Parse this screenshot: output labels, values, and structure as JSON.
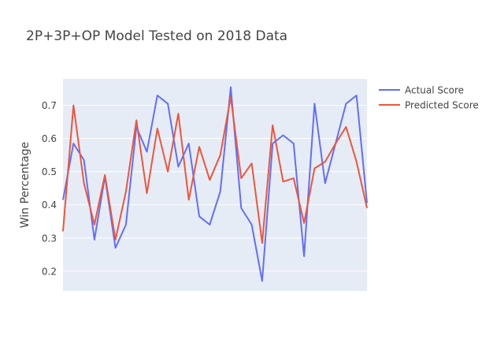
{
  "chart_data": {
    "type": "line",
    "title": "2P+3P+OP Model Tested on 2018 Data",
    "xlabel": "",
    "ylabel": "Win Percentage",
    "x": [
      0,
      1,
      2,
      3,
      4,
      5,
      6,
      7,
      8,
      9,
      10,
      11,
      12,
      13,
      14,
      15,
      16,
      17,
      18,
      19,
      20,
      21,
      22,
      23,
      24,
      25,
      26,
      27,
      28,
      29
    ],
    "ylim": [
      0.14,
      0.78
    ],
    "yticks": [
      0.2,
      0.3,
      0.4,
      0.5,
      0.6,
      0.7
    ],
    "ytick_labels": [
      "0.2",
      "0.3",
      "0.4",
      "0.5",
      "0.6",
      "0.7"
    ],
    "grid": true,
    "legend_position": "top-right",
    "series": [
      {
        "name": "Actual Score",
        "color": "#636efa",
        "values": [
          0.415,
          0.585,
          0.535,
          0.295,
          0.485,
          0.27,
          0.34,
          0.635,
          0.56,
          0.73,
          0.705,
          0.515,
          0.585,
          0.365,
          0.34,
          0.44,
          0.755,
          0.39,
          0.34,
          0.17,
          0.585,
          0.61,
          0.585,
          0.245,
          0.705,
          0.465,
          0.585,
          0.705,
          0.73,
          0.405
        ]
      },
      {
        "name": "Predicted Score",
        "color": "#ef553b",
        "values": [
          0.32,
          0.7,
          0.465,
          0.34,
          0.49,
          0.295,
          0.44,
          0.655,
          0.435,
          0.63,
          0.5,
          0.675,
          0.415,
          0.575,
          0.475,
          0.55,
          0.725,
          0.48,
          0.525,
          0.285,
          0.64,
          0.47,
          0.48,
          0.345,
          0.51,
          0.53,
          0.585,
          0.635,
          0.53,
          0.39
        ]
      }
    ]
  }
}
